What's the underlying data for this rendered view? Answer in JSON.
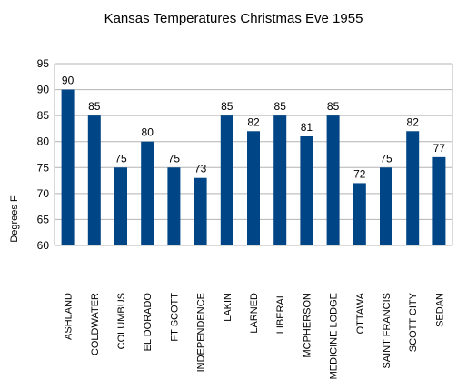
{
  "chart_data": {
    "type": "bar",
    "title": "Kansas Temperatures Christmas Eve 1955",
    "xlabel": "",
    "ylabel": "Degrees F",
    "ylim": [
      60,
      95
    ],
    "yticks": [
      60,
      65,
      70,
      75,
      80,
      85,
      90,
      95
    ],
    "grid": true,
    "legend": "none",
    "bar_color": "#004586",
    "categories": [
      "ASHLAND",
      "COLDWATER",
      "COLUMBUS",
      "EL DORADO",
      "FT SCOTT",
      "INDEPENDENCE",
      "LAKIN",
      "LARNED",
      "LIBERAL",
      "MCPHERSON",
      "MEDICINE LODGE",
      "OTTAWA",
      "SAINT FRANCIS",
      "SCOTT CITY",
      "SEDAN"
    ],
    "values": [
      90,
      85,
      75,
      80,
      75,
      73,
      85,
      82,
      85,
      81,
      85,
      72,
      75,
      82,
      77
    ]
  }
}
